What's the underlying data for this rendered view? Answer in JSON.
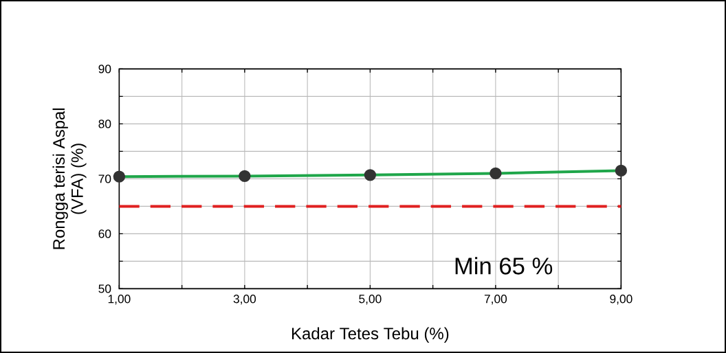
{
  "chart_data": {
    "type": "line",
    "xlabel": "Kadar Tetes Tebu (%)",
    "ylabel": "Rongga terisi Aspal\n(VFA) (%)",
    "x": [
      1,
      3,
      5,
      7,
      9
    ],
    "series": [
      {
        "color": "#1fa64a",
        "values": [
          70.4,
          70.5,
          70.7,
          71.0,
          71.5
        ]
      }
    ],
    "marker": "circle",
    "line_style": "solid",
    "grid": true,
    "xlim": [
      1,
      9
    ],
    "ylim": [
      50,
      90
    ],
    "xticks": [
      {
        "value": 1,
        "label": "1,00"
      },
      {
        "value": 2,
        "label": null
      },
      {
        "value": 3,
        "label": "3,00"
      },
      {
        "value": 4,
        "label": null
      },
      {
        "value": 5,
        "label": "5,00"
      },
      {
        "value": 6,
        "label": null
      },
      {
        "value": 7,
        "label": "7,00"
      },
      {
        "value": 8,
        "label": null
      },
      {
        "value": 9,
        "label": "9,00"
      }
    ],
    "yticks": [
      50,
      {
        "value": 55,
        "label": null
      },
      60,
      {
        "value": 65,
        "label": null
      },
      70,
      {
        "value": 75,
        "label": null
      },
      80,
      {
        "value": 85,
        "label": null
      },
      90
    ],
    "ref_lines": [
      {
        "axis": "y",
        "value": 65,
        "label": "Min 65 %",
        "color": "#e02020",
        "line_style": "dashed"
      }
    ]
  }
}
